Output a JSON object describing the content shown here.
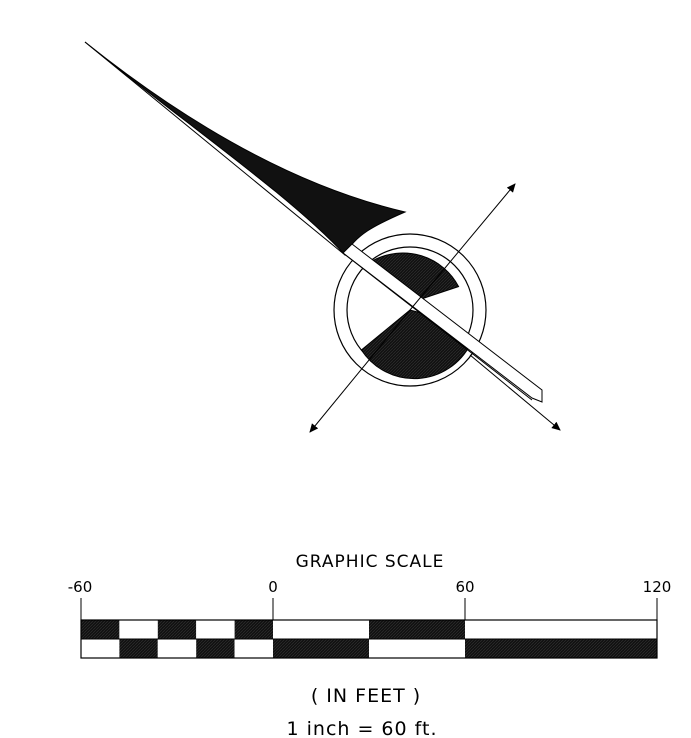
{
  "north_arrow": {
    "symbol": "north-arrow-icon"
  },
  "scale": {
    "title": "GRAPHIC SCALE",
    "ticks": [
      "-60",
      "0",
      "60",
      "120"
    ],
    "units": "( IN FEET )",
    "ratio": "1 inch = 60 ft."
  },
  "colors": {
    "ink": "#000000",
    "paper": "#ffffff",
    "hatch": "#1a1a1a"
  }
}
